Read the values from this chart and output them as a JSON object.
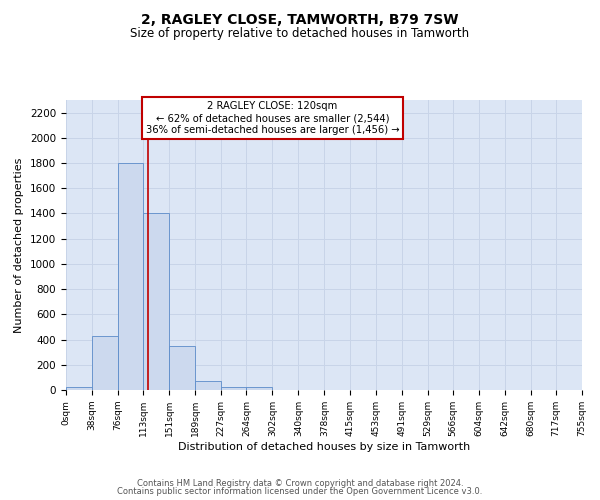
{
  "title": "2, RAGLEY CLOSE, TAMWORTH, B79 7SW",
  "subtitle": "Size of property relative to detached houses in Tamworth",
  "xlabel": "Distribution of detached houses by size in Tamworth",
  "ylabel": "Number of detached properties",
  "bar_color": "#ccd9ee",
  "bar_edge_color": "#5b8bc9",
  "background_color": "#ffffff",
  "grid_color": "#c8d4e8",
  "ax_bg_color": "#dce6f5",
  "annotation_box_color": "#ffffff",
  "annotation_box_edge_color": "#c00000",
  "vline_color": "#c00000",
  "annotation_line1": "2 RAGLEY CLOSE: 120sqm",
  "annotation_line2": "← 62% of detached houses are smaller (2,544)",
  "annotation_line3": "36% of semi-detached houses are larger (1,456) →",
  "property_size": 120,
  "bin_edges": [
    0,
    38,
    76,
    113,
    151,
    189,
    227,
    264,
    302,
    340,
    378,
    415,
    453,
    491,
    529,
    566,
    604,
    642,
    680,
    717,
    755
  ],
  "bin_labels": [
    "0sqm",
    "38sqm",
    "76sqm",
    "113sqm",
    "151sqm",
    "189sqm",
    "227sqm",
    "264sqm",
    "302sqm",
    "340sqm",
    "378sqm",
    "415sqm",
    "453sqm",
    "491sqm",
    "529sqm",
    "566sqm",
    "604sqm",
    "642sqm",
    "680sqm",
    "717sqm",
    "755sqm"
  ],
  "bar_heights": [
    20,
    430,
    1800,
    1400,
    350,
    75,
    25,
    20,
    0,
    0,
    0,
    0,
    0,
    0,
    0,
    0,
    0,
    0,
    0,
    0
  ],
  "ylim": [
    0,
    2300
  ],
  "yticks": [
    0,
    200,
    400,
    600,
    800,
    1000,
    1200,
    1400,
    1600,
    1800,
    2000,
    2200
  ],
  "footer_line1": "Contains HM Land Registry data © Crown copyright and database right 2024.",
  "footer_line2": "Contains public sector information licensed under the Open Government Licence v3.0."
}
